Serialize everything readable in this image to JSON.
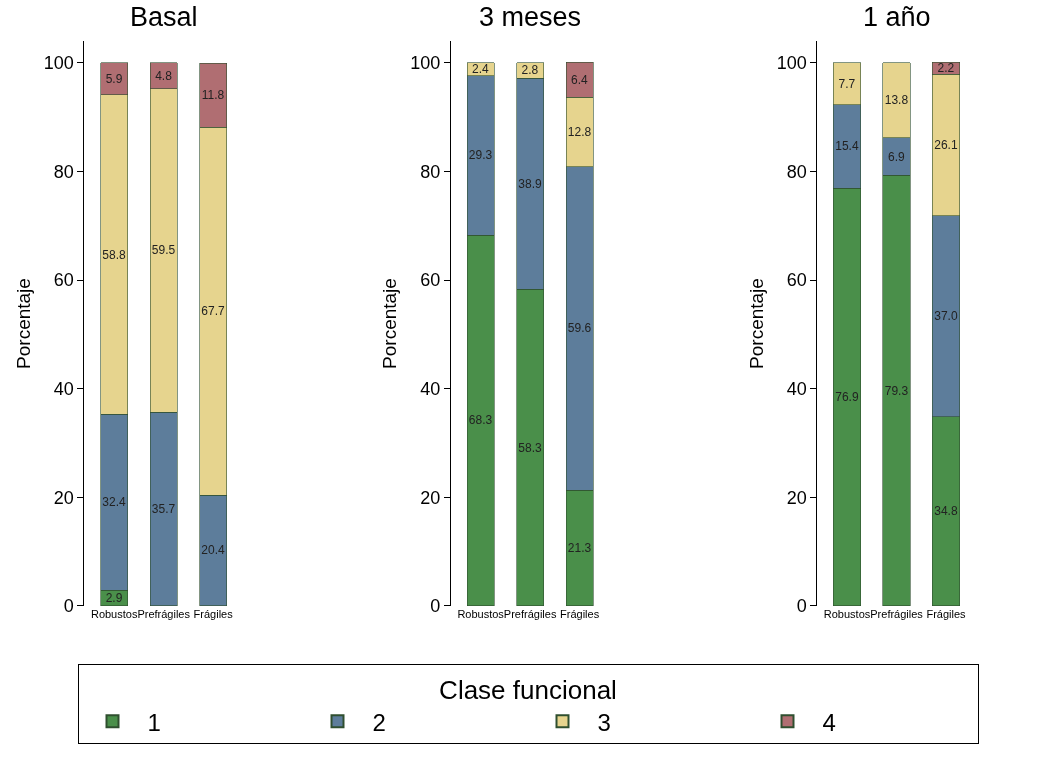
{
  "chart_data": [
    {
      "type": "bar",
      "title": "Basal",
      "ylabel": "Porcentaje",
      "stacked": true,
      "categories": [
        "Robustos",
        "Prefrágiles",
        "Frágiles"
      ],
      "ylim": [
        0,
        104
      ],
      "yticks": [
        0,
        20,
        40,
        60,
        80,
        100
      ],
      "legend": "bottom",
      "legend_title": "Clase funcional",
      "series": [
        {
          "name": "1",
          "color": "#4a8f4a",
          "values": [
            2.9,
            null,
            null
          ],
          "value_labels": [
            "2.9",
            null,
            null
          ]
        },
        {
          "name": "2",
          "color": "#5d7d9b",
          "values": [
            32.4,
            35.7,
            20.4
          ],
          "value_labels": [
            "32.4",
            "35.7",
            "20.4"
          ]
        },
        {
          "name": "3",
          "color": "#e6d48e",
          "values": [
            58.8,
            59.5,
            67.7
          ],
          "value_labels": [
            "58.8",
            "59.5",
            "67.7"
          ]
        },
        {
          "name": "4",
          "color": "#b06e72",
          "values": [
            5.9,
            4.8,
            11.8
          ],
          "value_labels": [
            "5.9",
            "4.8",
            "11.8"
          ]
        }
      ]
    },
    {
      "type": "bar",
      "title": "3 meses",
      "ylabel": "Porcentaje",
      "stacked": true,
      "categories": [
        "Robustos",
        "Prefrágiles",
        "Frágiles"
      ],
      "ylim": [
        0,
        104
      ],
      "yticks": [
        0,
        20,
        40,
        60,
        80,
        100
      ],
      "series": [
        {
          "name": "1",
          "color": "#4a8f4a",
          "values": [
            68.3,
            58.3,
            21.3
          ],
          "value_labels": [
            "68.3",
            "58.3",
            "21.3"
          ]
        },
        {
          "name": "2",
          "color": "#5d7d9b",
          "values": [
            29.3,
            38.9,
            59.6
          ],
          "value_labels": [
            "29.3",
            "38.9",
            "59.6"
          ]
        },
        {
          "name": "3",
          "color": "#e6d48e",
          "values": [
            2.4,
            2.8,
            12.8
          ],
          "value_labels": [
            "2.4",
            "2.8",
            "12.8"
          ]
        },
        {
          "name": "4",
          "color": "#b06e72",
          "values": [
            null,
            null,
            6.4
          ],
          "value_labels": [
            null,
            null,
            "6.4"
          ]
        }
      ]
    },
    {
      "type": "bar",
      "title": "1 año",
      "ylabel": "Porcentaje",
      "stacked": true,
      "categories": [
        "Robustos",
        "Prefrágiles",
        "Frágiles"
      ],
      "ylim": [
        0,
        104
      ],
      "yticks": [
        0,
        20,
        40,
        60,
        80,
        100
      ],
      "series": [
        {
          "name": "1",
          "color": "#4a8f4a",
          "values": [
            76.9,
            79.3,
            34.8
          ],
          "value_labels": [
            "76.9",
            "79.3",
            "34.8"
          ]
        },
        {
          "name": "2",
          "color": "#5d7d9b",
          "values": [
            15.4,
            6.9,
            37.0
          ],
          "value_labels": [
            "15.4",
            "6.9",
            "37.0"
          ]
        },
        {
          "name": "3",
          "color": "#e6d48e",
          "values": [
            7.7,
            13.8,
            26.1
          ],
          "value_labels": [
            "7.7",
            "13.8",
            "26.1"
          ]
        },
        {
          "name": "4",
          "color": "#b06e72",
          "values": [
            null,
            null,
            2.2
          ],
          "value_labels": [
            null,
            null,
            "2.2"
          ]
        }
      ]
    }
  ]
}
